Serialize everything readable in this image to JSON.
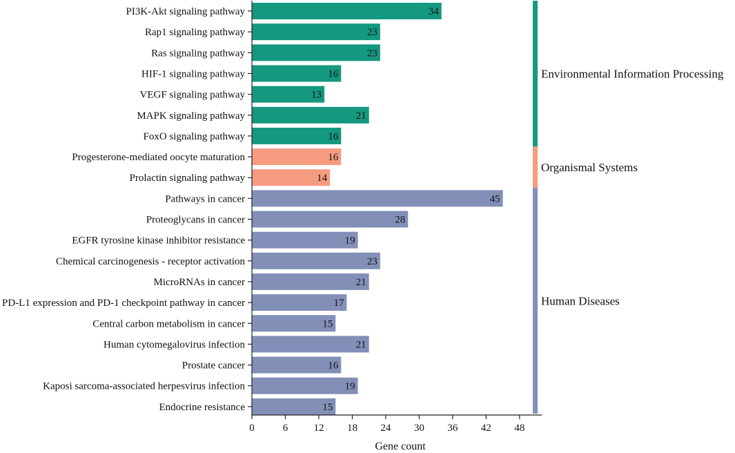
{
  "chart_data": {
    "type": "bar",
    "orientation": "horizontal",
    "xlabel": "Gene count",
    "xlim": [
      0,
      52
    ],
    "xticks": [
      0,
      6,
      12,
      18,
      24,
      30,
      36,
      42,
      48
    ],
    "groups": [
      {
        "name": "Environmental Information Processing",
        "color": "#14987f",
        "count": 7
      },
      {
        "name": "Organismal Systems",
        "color": "#f59b80",
        "count": 2
      },
      {
        "name": "Human Diseases",
        "color": "#8290b8",
        "count": 11
      }
    ],
    "categories": [
      "PI3K-Akt signaling pathway",
      "Rap1 signaling pathway",
      "Ras signaling pathway",
      "HIF-1 signaling pathway",
      "VEGF signaling pathway",
      "MAPK signaling pathway",
      "FoxO signaling pathway",
      "Progesterone-mediated oocyte maturation",
      "Prolactin signaling pathway",
      "Pathways in cancer",
      "Proteoglycans in cancer",
      "EGFR tyrosine kinase inhibitor resistance",
      "Chemical carcinogenesis - receptor activation",
      "MicroRNAs in cancer",
      "PD-L1 expression and PD-1 checkpoint pathway in cancer",
      "Central carbon metabolism in cancer",
      "Human cytomegalovirus infection",
      "Prostate cancer",
      "Kaposi sarcoma-associated herpesvirus infection",
      "Endocrine resistance"
    ],
    "values": [
      34,
      23,
      23,
      16,
      13,
      21,
      16,
      16,
      14,
      45,
      28,
      19,
      23,
      21,
      17,
      15,
      21,
      16,
      19,
      15
    ],
    "series_group": [
      0,
      0,
      0,
      0,
      0,
      0,
      0,
      1,
      1,
      2,
      2,
      2,
      2,
      2,
      2,
      2,
      2,
      2,
      2,
      2
    ]
  }
}
